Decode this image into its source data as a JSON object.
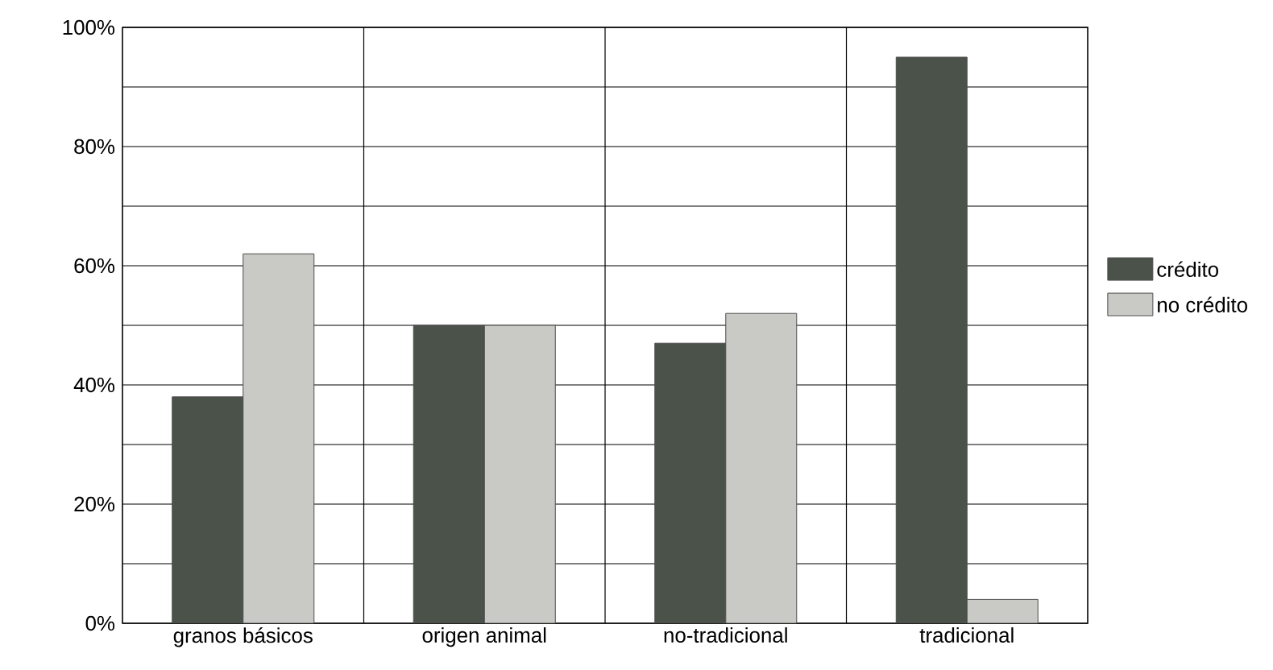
{
  "chart_data": {
    "type": "bar",
    "categories": [
      "granos básicos",
      "origen animal",
      "no-tradicional",
      "tradicional"
    ],
    "series": [
      {
        "name": "crédito",
        "color": "#4b5249",
        "values": [
          38,
          50,
          47,
          95
        ]
      },
      {
        "name": "no crédito",
        "color": "#c9c9c5",
        "values": [
          62,
          50,
          52,
          4
        ]
      }
    ],
    "ylim": [
      0,
      100
    ],
    "yticks": [
      {
        "value": 0,
        "label": "0%"
      },
      {
        "value": 10,
        "label": null
      },
      {
        "value": 20,
        "label": "20%"
      },
      {
        "value": 30,
        "label": null
      },
      {
        "value": 40,
        "label": "40%"
      },
      {
        "value": 50,
        "label": null
      },
      {
        "value": 60,
        "label": "60%"
      },
      {
        "value": 70,
        "label": null
      },
      {
        "value": 80,
        "label": "80%"
      },
      {
        "value": 90,
        "label": null
      },
      {
        "value": 100,
        "label": "100%"
      }
    ],
    "grid": true,
    "legend": "right"
  }
}
